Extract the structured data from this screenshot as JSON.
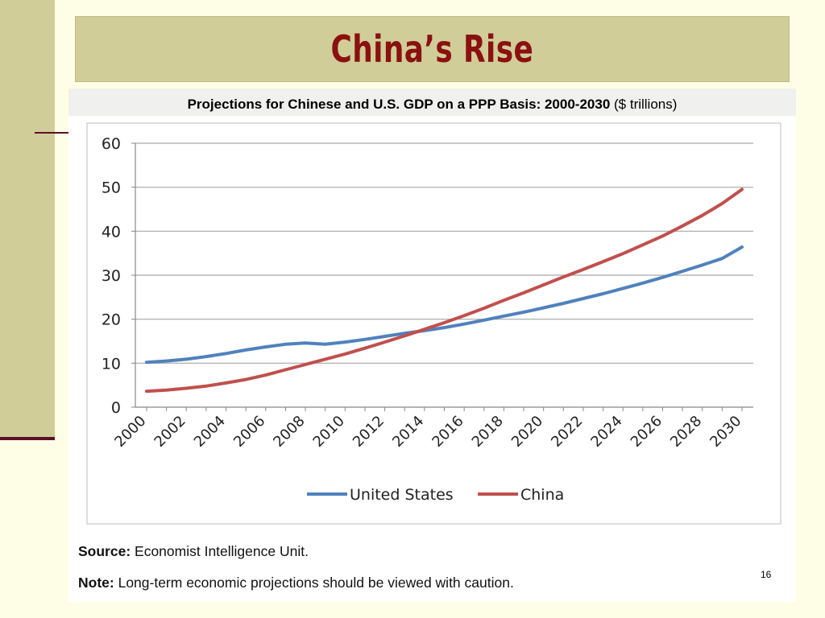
{
  "slide": {
    "title": "China’s Rise",
    "page_number": "16",
    "colors": {
      "background": "#fefee6",
      "band": "#d0cd98",
      "title_text": "#8b1010",
      "rule": "#5c0f2a"
    }
  },
  "chart_heading": {
    "bold_part": "Projections for Chinese and U.S. GDP on a PPP Basis: 2000-2030",
    "normal_part": " ($ trillions)"
  },
  "footnotes": {
    "source_label": "Source:",
    "source_text": " Economist Intelligence Unit.",
    "note_label": "Note:",
    "note_text": " Long-term economic projections should be viewed with caution."
  },
  "chart_data": {
    "type": "line",
    "title": "Projections for Chinese and U.S. GDP on a PPP Basis: 2000-2030 ($ trillions)",
    "x": [
      2000,
      2001,
      2002,
      2003,
      2004,
      2005,
      2006,
      2007,
      2008,
      2009,
      2010,
      2011,
      2012,
      2013,
      2014,
      2015,
      2016,
      2017,
      2018,
      2019,
      2020,
      2021,
      2022,
      2023,
      2024,
      2025,
      2026,
      2027,
      2028,
      2029,
      2030
    ],
    "x_tick_labels": [
      "2000",
      "2002",
      "2004",
      "2006",
      "2008",
      "2010",
      "2012",
      "2014",
      "2016",
      "2018",
      "2020",
      "2022",
      "2024",
      "2026",
      "2028",
      "2030"
    ],
    "ylim": [
      0,
      60
    ],
    "y_ticks": [
      0,
      10,
      20,
      30,
      40,
      50,
      60
    ],
    "grid": true,
    "legend_position": "bottom",
    "series": [
      {
        "name": "United States",
        "color": "#4f81bd",
        "values": [
          10.2,
          10.5,
          10.9,
          11.5,
          12.2,
          13.0,
          13.7,
          14.3,
          14.6,
          14.3,
          14.8,
          15.4,
          16.1,
          16.8,
          17.4,
          18.1,
          18.9,
          19.8,
          20.7,
          21.6,
          22.6,
          23.6,
          24.7,
          25.8,
          27.0,
          28.2,
          29.5,
          30.9,
          32.3,
          33.8,
          36.4
        ]
      },
      {
        "name": "China",
        "color": "#c0504d",
        "values": [
          3.6,
          3.9,
          4.3,
          4.8,
          5.5,
          6.3,
          7.3,
          8.5,
          9.7,
          10.9,
          12.1,
          13.4,
          14.8,
          16.2,
          17.7,
          19.2,
          20.8,
          22.5,
          24.3,
          26.0,
          27.8,
          29.6,
          31.3,
          33.1,
          34.9,
          36.9,
          38.9,
          41.2,
          43.6,
          46.3,
          49.5
        ]
      }
    ]
  }
}
